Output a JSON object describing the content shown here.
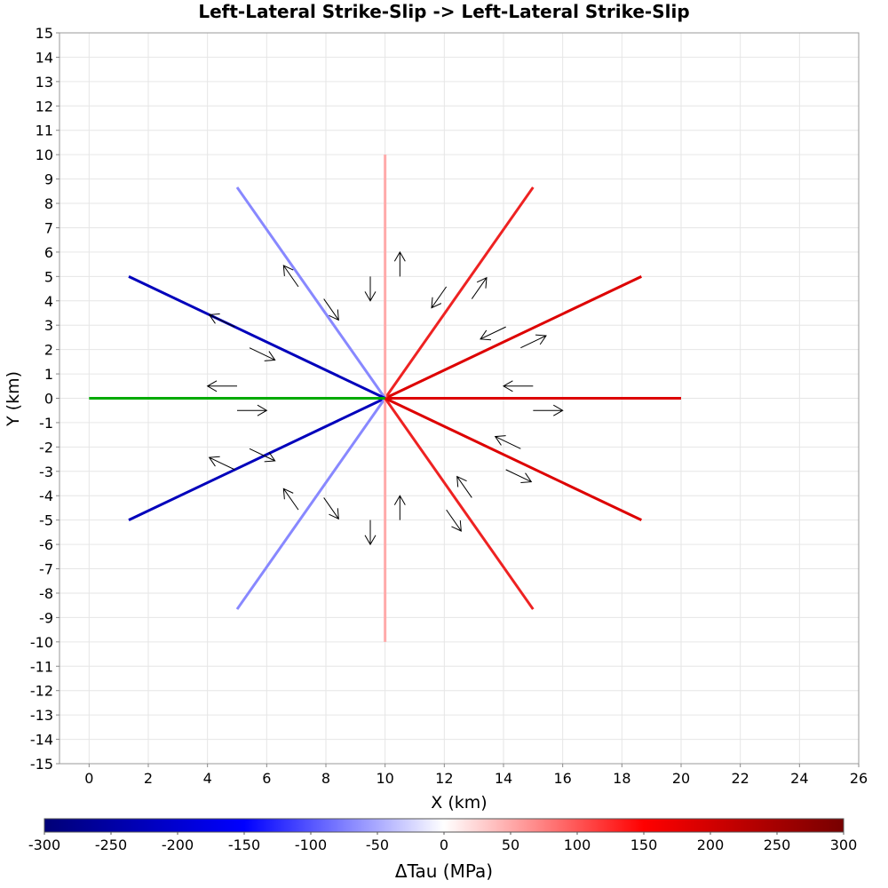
{
  "chart_data": {
    "type": "line",
    "title": "Left-Lateral Strike-Slip -> Left-Lateral Strike-Slip",
    "xlabel": "X (km)",
    "ylabel": "Y (km)",
    "xlim": [
      -1,
      26
    ],
    "ylim": [
      -15,
      15
    ],
    "xticks": [
      0,
      2,
      4,
      6,
      8,
      10,
      12,
      14,
      16,
      18,
      20,
      22,
      24,
      26
    ],
    "yticks": [
      -15,
      -14,
      -13,
      -12,
      -11,
      -10,
      -9,
      -8,
      -7,
      -6,
      -5,
      -4,
      -3,
      -2,
      -1,
      0,
      1,
      2,
      3,
      4,
      5,
      6,
      7,
      8,
      9,
      10,
      11,
      12,
      13,
      14,
      15
    ],
    "grid": true,
    "source_fault": {
      "x": [
        0,
        10
      ],
      "y": [
        0,
        0
      ],
      "color": "#00aa00"
    },
    "receiver_faults": [
      {
        "angle_deg": 0,
        "x": [
          10,
          20
        ],
        "y": [
          0,
          0
        ],
        "color": "#dd0000"
      },
      {
        "angle_deg": 30,
        "x": [
          10,
          18.66
        ],
        "y": [
          0,
          5
        ],
        "color": "#dd0000"
      },
      {
        "angle_deg": 60,
        "x": [
          10,
          15
        ],
        "y": [
          0,
          8.66
        ],
        "color": "#ee2222"
      },
      {
        "angle_deg": 90,
        "x": [
          10,
          10
        ],
        "y": [
          0,
          10
        ],
        "color": "#ffaaaa"
      },
      {
        "angle_deg": 120,
        "x": [
          10,
          5
        ],
        "y": [
          0,
          8.66
        ],
        "color": "#8888ff"
      },
      {
        "angle_deg": 150,
        "x": [
          10,
          1.34
        ],
        "y": [
          0,
          5
        ],
        "color": "#0000bb"
      },
      {
        "angle_deg": 210,
        "x": [
          10,
          1.34
        ],
        "y": [
          0,
          -5
        ],
        "color": "#0000bb"
      },
      {
        "angle_deg": 240,
        "x": [
          10,
          5
        ],
        "y": [
          0,
          -8.66
        ],
        "color": "#8888ff"
      },
      {
        "angle_deg": 270,
        "x": [
          10,
          10
        ],
        "y": [
          0,
          -10
        ],
        "color": "#ffaaaa"
      },
      {
        "angle_deg": 300,
        "x": [
          10,
          15
        ],
        "y": [
          0,
          -8.66
        ],
        "color": "#ee2222"
      },
      {
        "angle_deg": 330,
        "x": [
          10,
          18.66
        ],
        "y": [
          0,
          -5
        ],
        "color": "#dd0000"
      }
    ],
    "slip_arrows": [
      {
        "x1": 15,
        "y1": 0.5,
        "x2": 14,
        "y2": 0.5
      },
      {
        "x1": 15,
        "y1": -0.5,
        "x2": 16,
        "y2": -0.5
      },
      {
        "x1": 14.08,
        "y1": 2.93,
        "x2": 13.22,
        "y2": 2.43
      },
      {
        "x1": 14.58,
        "y1": 2.07,
        "x2": 15.44,
        "y2": 2.57
      },
      {
        "x1": 12.07,
        "y1": 4.58,
        "x2": 11.57,
        "y2": 3.71
      },
      {
        "x1": 12.93,
        "y1": 4.08,
        "x2": 13.43,
        "y2": 4.95
      },
      {
        "x1": 10.5,
        "y1": 5,
        "x2": 10.5,
        "y2": 6
      },
      {
        "x1": 9.5,
        "y1": 5,
        "x2": 9.5,
        "y2": 4
      },
      {
        "x1": 7.07,
        "y1": 4.58,
        "x2": 6.57,
        "y2": 5.45
      },
      {
        "x1": 7.93,
        "y1": 4.08,
        "x2": 8.43,
        "y2": 3.21
      },
      {
        "x1": 4.92,
        "y1": 2.93,
        "x2": 4.06,
        "y2": 3.43
      },
      {
        "x1": 5.42,
        "y1": 2.07,
        "x2": 6.28,
        "y2": 1.57
      },
      {
        "x1": 5,
        "y1": 0.5,
        "x2": 4,
        "y2": 0.5
      },
      {
        "x1": 5,
        "y1": -0.5,
        "x2": 6,
        "y2": -0.5
      },
      {
        "x1": 4.92,
        "y1": -2.93,
        "x2": 4.06,
        "y2": -2.43
      },
      {
        "x1": 5.42,
        "y1": -2.07,
        "x2": 6.28,
        "y2": -2.57
      },
      {
        "x1": 7.07,
        "y1": -4.58,
        "x2": 6.57,
        "y2": -3.71
      },
      {
        "x1": 7.93,
        "y1": -4.08,
        "x2": 8.43,
        "y2": -4.95
      },
      {
        "x1": 9.5,
        "y1": -5,
        "x2": 9.5,
        "y2": -6
      },
      {
        "x1": 10.5,
        "y1": -5,
        "x2": 10.5,
        "y2": -4
      },
      {
        "x1": 12.93,
        "y1": -4.08,
        "x2": 12.43,
        "y2": -3.21
      },
      {
        "x1": 12.07,
        "y1": -4.58,
        "x2": 12.57,
        "y2": -5.45
      },
      {
        "x1": 14.58,
        "y1": -2.07,
        "x2": 13.72,
        "y2": -1.57
      },
      {
        "x1": 14.08,
        "y1": -2.93,
        "x2": 14.94,
        "y2": -3.43
      }
    ],
    "colorbar": {
      "label": "ΔTau (MPa)",
      "range": [
        -300,
        300
      ],
      "ticks": [
        -300,
        -250,
        -200,
        -150,
        -100,
        -50,
        0,
        50,
        100,
        150,
        200,
        250,
        300
      ],
      "stops": [
        {
          "value": -300,
          "color": "#000077"
        },
        {
          "value": -150,
          "color": "#0000ff"
        },
        {
          "value": 0,
          "color": "#ffffff"
        },
        {
          "value": 150,
          "color": "#ff0000"
        },
        {
          "value": 300,
          "color": "#770000"
        }
      ]
    }
  }
}
